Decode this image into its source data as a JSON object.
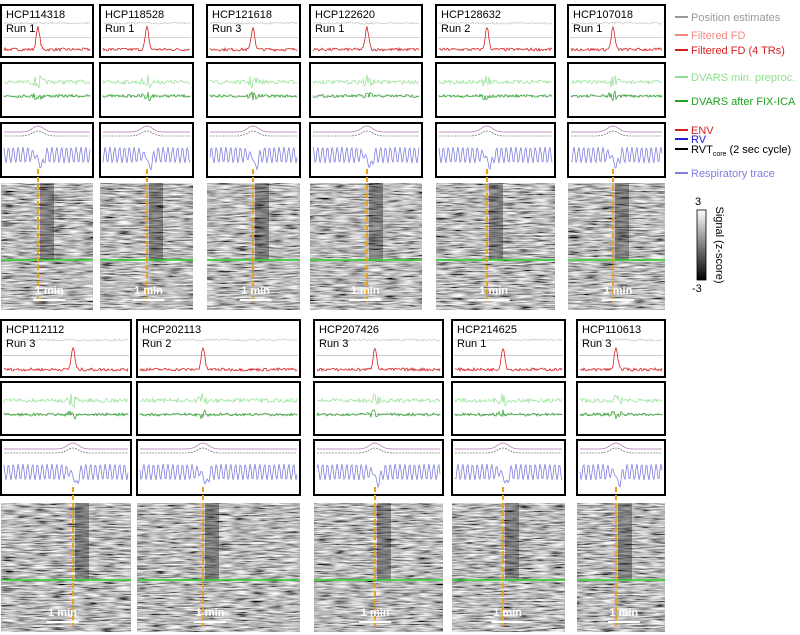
{
  "top_row": [
    {
      "subject": "HCP114318",
      "run": "Run 1"
    },
    {
      "subject": "HCP118528",
      "run": "Run 1"
    },
    {
      "subject": "HCP121618",
      "run": "Run 3"
    },
    {
      "subject": "HCP122620",
      "run": "Run 1"
    },
    {
      "subject": "HCP128632",
      "run": "Run 2"
    },
    {
      "subject": "HCP107018",
      "run": "Run 1"
    }
  ],
  "bottom_row": [
    {
      "subject": "HCP112112",
      "run": "Run 3"
    },
    {
      "subject": "HCP202113",
      "run": "Run 2"
    },
    {
      "subject": "HCP207426",
      "run": "Run 3"
    },
    {
      "subject": "HCP214625",
      "run": "Run 1"
    },
    {
      "subject": "HCP110613",
      "run": "Run 3"
    }
  ],
  "scale_bar": "1 min",
  "legend": [
    {
      "label": "Position estimates",
      "color": "#999999"
    },
    {
      "label": "Filtered FD",
      "color": "#f08a80"
    },
    {
      "label": "Filtered FD (4 TRs)",
      "color": "#d62020"
    },
    {
      "label": "DVARS min. preproc.",
      "color": "#8fe08f"
    },
    {
      "label": "DVARS after FIX-ICA",
      "color": "#22a022"
    },
    {
      "label": "ENV",
      "color": "#d62020"
    },
    {
      "label": "RV",
      "color": "#2020d0"
    },
    {
      "label": "RVT",
      "sub": "core",
      "suffix": "(2 sec cycle)",
      "color": "#000000"
    },
    {
      "label": "Respiratory trace",
      "color": "#8080e0"
    }
  ],
  "colorbar": {
    "max": "3",
    "min": "-3",
    "label": "Signal (z-score)"
  }
}
